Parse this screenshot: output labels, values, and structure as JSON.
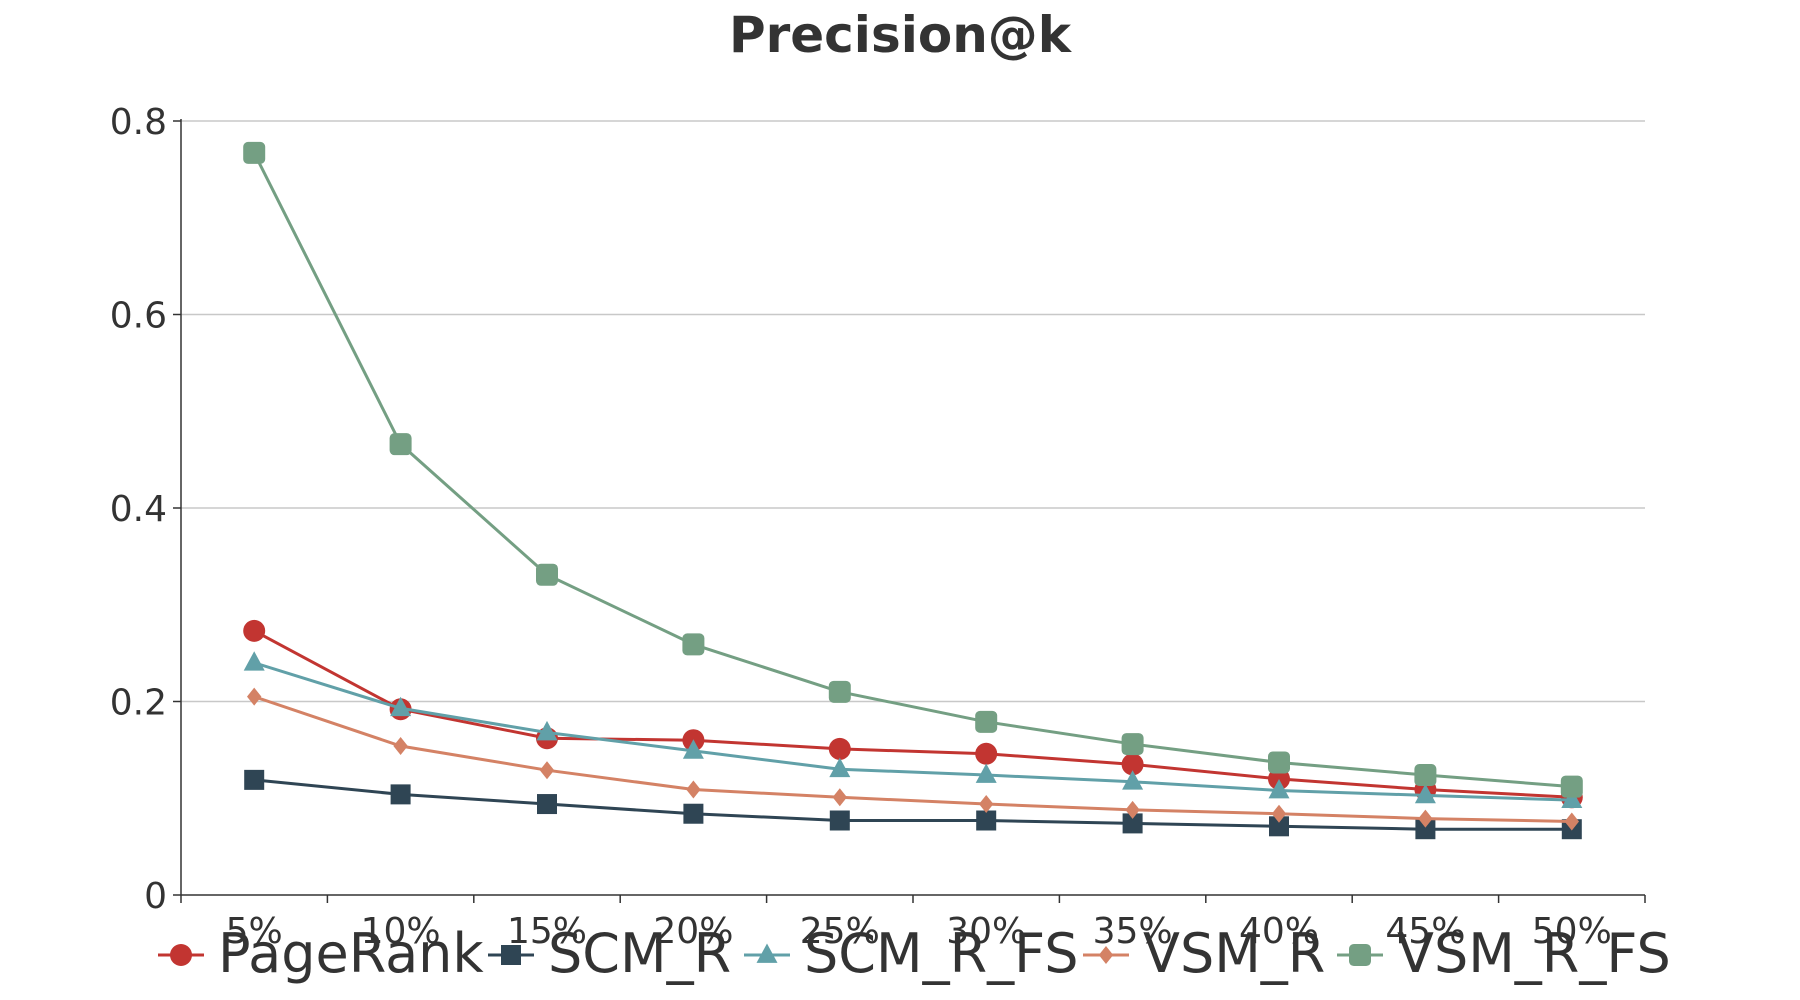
{
  "chart_data": {
    "type": "line",
    "title": "Precision@k",
    "xlabel": "",
    "ylabel": "",
    "categories": [
      "5%",
      "10%",
      "15%",
      "20%",
      "25%",
      "30%",
      "35%",
      "40%",
      "45%",
      "50%"
    ],
    "ylim": [
      0,
      0.8
    ],
    "yticks": [
      0,
      0.2,
      0.4,
      0.6,
      0.8
    ],
    "ytick_labels": [
      "0",
      "0.2",
      "0.4",
      "0.6",
      "0.8"
    ],
    "grid": "horizontal",
    "legend_position": "bottom",
    "series": [
      {
        "name": "PageRank",
        "marker": "circle",
        "color": "#c23531",
        "values": [
          0.273,
          0.192,
          0.162,
          0.16,
          0.151,
          0.146,
          0.135,
          0.12,
          0.109,
          0.101
        ]
      },
      {
        "name": "SCM_R",
        "marker": "square",
        "color": "#2f4554",
        "values": [
          0.119,
          0.104,
          0.094,
          0.084,
          0.077,
          0.077,
          0.074,
          0.071,
          0.068,
          0.068
        ]
      },
      {
        "name": "SCM_R_FS",
        "marker": "triangle",
        "color": "#61a0a8",
        "values": [
          0.24,
          0.193,
          0.168,
          0.149,
          0.13,
          0.124,
          0.117,
          0.108,
          0.103,
          0.098
        ]
      },
      {
        "name": "VSM_R",
        "marker": "diamond",
        "color": "#d48265",
        "values": [
          0.205,
          0.154,
          0.129,
          0.109,
          0.101,
          0.094,
          0.088,
          0.084,
          0.079,
          0.076
        ]
      },
      {
        "name": "VSM_R_FS",
        "marker": "roundrect",
        "color": "#749f83",
        "values": [
          0.767,
          0.466,
          0.331,
          0.259,
          0.21,
          0.179,
          0.156,
          0.137,
          0.124,
          0.112
        ]
      }
    ]
  }
}
